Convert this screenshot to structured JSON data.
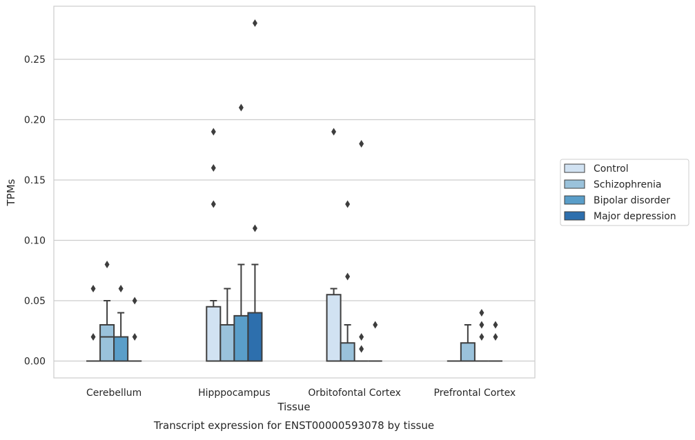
{
  "chart_data": {
    "type": "box",
    "title": "",
    "caption": "Transcript expression for ENST00000593078 by tissue",
    "xlabel": "Tissue",
    "ylabel": "TPMs",
    "ylim": [
      -0.014,
      0.294
    ],
    "yticks": [
      0.0,
      0.05,
      0.1,
      0.15,
      0.2,
      0.25
    ],
    "ytick_labels": [
      "0.00",
      "0.05",
      "0.10",
      "0.15",
      "0.20",
      "0.25"
    ],
    "grid": "horizontal",
    "legend_position": "right",
    "categories": [
      "Cerebellum",
      "Hipppocampus",
      "Orbitofontal Cortex",
      "Prefrontal Cortex"
    ],
    "series": [
      {
        "name": "Control",
        "color": "#d1e2f2",
        "boxes": [
          {
            "q1": 0,
            "median": 0,
            "q3": 0,
            "whisker_low": 0,
            "whisker_high": 0,
            "outliers": [
              0.02,
              0.06
            ]
          },
          {
            "q1": 0,
            "median": 0,
            "q3": 0.045,
            "whisker_low": 0,
            "whisker_high": 0.05,
            "outliers": [
              0.13,
              0.16,
              0.19
            ]
          },
          {
            "q1": 0,
            "median": 0,
            "q3": 0.055,
            "whisker_low": 0,
            "whisker_high": 0.06,
            "outliers": [
              0.19
            ]
          },
          {
            "q1": 0,
            "median": 0,
            "q3": 0,
            "whisker_low": 0,
            "whisker_high": 0,
            "outliers": []
          }
        ]
      },
      {
        "name": "Schizophrenia",
        "color": "#9ac2db",
        "boxes": [
          {
            "q1": 0,
            "median": 0.02,
            "q3": 0.03,
            "whisker_low": 0,
            "whisker_high": 0.05,
            "outliers": [
              0.08
            ]
          },
          {
            "q1": 0,
            "median": 0,
            "q3": 0.03,
            "whisker_low": 0,
            "whisker_high": 0.06,
            "outliers": []
          },
          {
            "q1": 0,
            "median": 0,
            "q3": 0.015,
            "whisker_low": 0,
            "whisker_high": 0.03,
            "outliers": [
              0.07,
              0.13
            ]
          },
          {
            "q1": 0,
            "median": 0,
            "q3": 0.015,
            "whisker_low": 0,
            "whisker_high": 0.03,
            "outliers": []
          }
        ]
      },
      {
        "name": "Bipolar disorder",
        "color": "#5a9ec9",
        "boxes": [
          {
            "q1": 0,
            "median": 0,
            "q3": 0.02,
            "whisker_low": 0,
            "whisker_high": 0.04,
            "outliers": [
              0.06
            ]
          },
          {
            "q1": 0,
            "median": 0,
            "q3": 0.0375,
            "whisker_low": 0,
            "whisker_high": 0.08,
            "outliers": [
              0.21
            ]
          },
          {
            "q1": 0,
            "median": 0,
            "q3": 0,
            "whisker_low": 0,
            "whisker_high": 0,
            "outliers": [
              0.01,
              0.02,
              0.18
            ]
          },
          {
            "q1": 0,
            "median": 0,
            "q3": 0,
            "whisker_low": 0,
            "whisker_high": 0,
            "outliers": [
              0.02,
              0.03,
              0.04
            ]
          }
        ]
      },
      {
        "name": "Major depression",
        "color": "#2d6fad",
        "boxes": [
          {
            "q1": 0,
            "median": 0,
            "q3": 0,
            "whisker_low": 0,
            "whisker_high": 0,
            "outliers": [
              0.02,
              0.05
            ]
          },
          {
            "q1": 0,
            "median": 0,
            "q3": 0.04,
            "whisker_low": 0,
            "whisker_high": 0.08,
            "outliers": [
              0.11,
              0.28
            ]
          },
          {
            "q1": 0,
            "median": 0,
            "q3": 0,
            "whisker_low": 0,
            "whisker_high": 0,
            "outliers": [
              0.03
            ]
          },
          {
            "q1": 0,
            "median": 0,
            "q3": 0,
            "whisker_low": 0,
            "whisker_high": 0,
            "outliers": [
              0.02,
              0.03
            ]
          }
        ]
      }
    ]
  }
}
